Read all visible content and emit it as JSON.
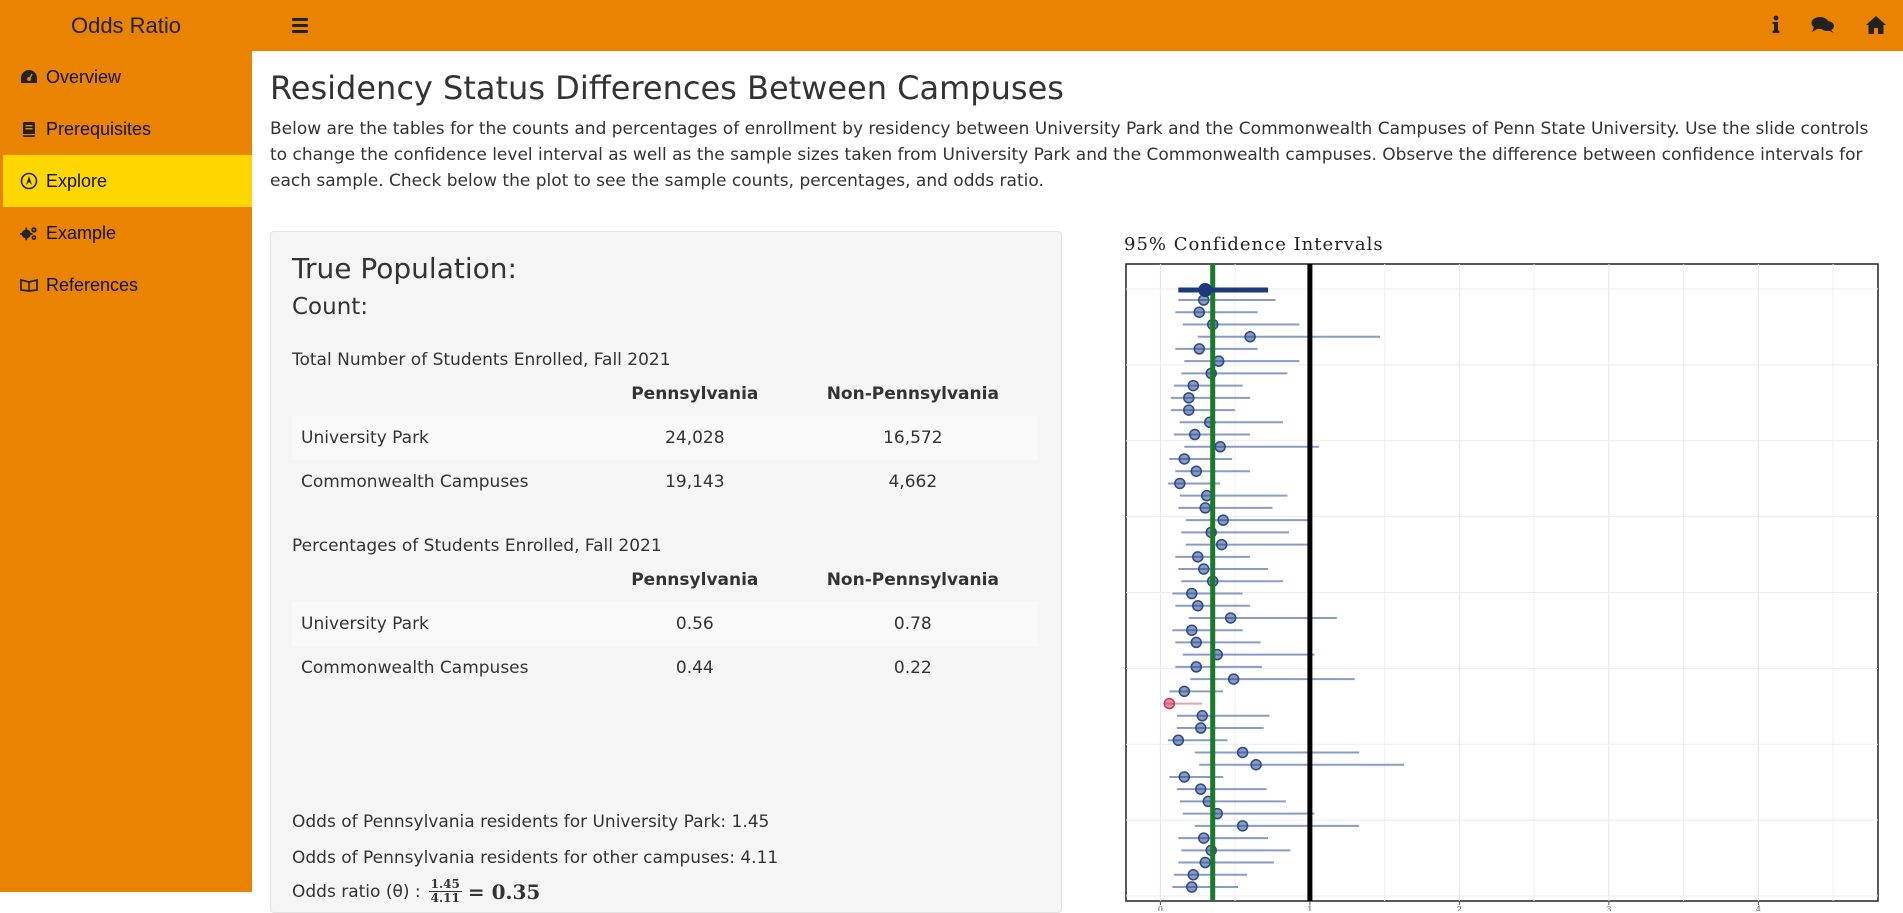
{
  "app": {
    "title": "Odds Ratio",
    "top_icons": [
      "info-icon",
      "comments-icon",
      "home-icon"
    ]
  },
  "sidebar": {
    "items": [
      {
        "label": "Overview",
        "icon": "dashboard-icon",
        "active": false
      },
      {
        "label": "Prerequisites",
        "icon": "book-icon",
        "active": false
      },
      {
        "label": "Explore",
        "icon": "wpexplorer-icon",
        "active": true
      },
      {
        "label": "Example",
        "icon": "gears-icon",
        "active": false
      },
      {
        "label": "References",
        "icon": "leanpub-icon",
        "active": false
      }
    ]
  },
  "main": {
    "title": "Residency Status Differences Between Campuses",
    "intro": "Below are the tables for the counts and percentages of enrollment by residency between University Park and the Commonwealth Campuses of Penn State University. Use the slide controls to change the confidence level interval as well as the sample sizes taken from University Park and the Commonwealth campuses. Observe the difference between confidence intervals for each sample. Check below the plot to see the sample counts, percentages, and odds ratio."
  },
  "panel": {
    "heading": "True Population:",
    "subheading": "Count:",
    "count_table": {
      "caption": "Total Number of Students Enrolled, Fall 2021",
      "headers": [
        "",
        "Pennsylvania",
        "Non-Pennsylvania"
      ],
      "rows": [
        [
          "University Park",
          "24,028",
          "16,572"
        ],
        [
          "Commonwealth Campuses",
          "19,143",
          "4,662"
        ]
      ]
    },
    "pct_table": {
      "caption": "Percentages of Students Enrolled, Fall 2021",
      "headers": [
        "",
        "Pennsylvania",
        "Non-Pennsylvania"
      ],
      "rows": [
        [
          "University Park",
          "0.56",
          "0.78"
        ],
        [
          "Commonwealth Campuses",
          "0.44",
          "0.22"
        ]
      ]
    },
    "odds_up": "Odds of Pennsylvania residents for University Park: 1.45",
    "odds_other": "Odds of Pennsylvania residents for other campuses: 4.11",
    "ratio_label": "Odds ratio (θ) :",
    "ratio_num": "1.45",
    "ratio_den": "4.11",
    "ratio_value": "= 0.35"
  },
  "chart_data": {
    "type": "scatter",
    "title": "95% Confidence Intervals",
    "xlabel": "",
    "ylabel": "",
    "xlim": [
      -0.23,
      4.8
    ],
    "xticks": [
      "0",
      "1",
      "2",
      "3",
      "4"
    ],
    "grid": true,
    "reference_lines": [
      {
        "name": "true odds ratio",
        "x": 0.35,
        "color": "#1a7a2a"
      },
      {
        "name": "null",
        "x": 1,
        "color": "#000000"
      }
    ],
    "colors": {
      "point": "#2a4a8a",
      "interval": "#8a9cc4",
      "miss": "#cc3355",
      "highlight": "#1a3a7a"
    },
    "highlight": {
      "estimate": 0.3,
      "lower": 0.12,
      "upper": 0.72
    },
    "intervals": [
      {
        "estimate": 0.29,
        "lower": 0.12,
        "upper": 0.77
      },
      {
        "estimate": 0.26,
        "lower": 0.1,
        "upper": 0.65
      },
      {
        "estimate": 0.35,
        "lower": 0.15,
        "upper": 0.93
      },
      {
        "estimate": 0.6,
        "lower": 0.25,
        "upper": 1.47
      },
      {
        "estimate": 0.26,
        "lower": 0.1,
        "upper": 0.65
      },
      {
        "estimate": 0.39,
        "lower": 0.16,
        "upper": 0.93
      },
      {
        "estimate": 0.34,
        "lower": 0.14,
        "upper": 0.85
      },
      {
        "estimate": 0.22,
        "lower": 0.09,
        "upper": 0.55
      },
      {
        "estimate": 0.19,
        "lower": 0.07,
        "upper": 0.6
      },
      {
        "estimate": 0.19,
        "lower": 0.07,
        "upper": 0.5
      },
      {
        "estimate": 0.33,
        "lower": 0.13,
        "upper": 0.82
      },
      {
        "estimate": 0.23,
        "lower": 0.09,
        "upper": 0.6
      },
      {
        "estimate": 0.4,
        "lower": 0.16,
        "upper": 1.06
      },
      {
        "estimate": 0.16,
        "lower": 0.06,
        "upper": 0.48
      },
      {
        "estimate": 0.24,
        "lower": 0.1,
        "upper": 0.6
      },
      {
        "estimate": 0.13,
        "lower": 0.05,
        "upper": 0.4
      },
      {
        "estimate": 0.31,
        "lower": 0.13,
        "upper": 0.85
      },
      {
        "estimate": 0.3,
        "lower": 0.12,
        "upper": 0.75
      },
      {
        "estimate": 0.42,
        "lower": 0.17,
        "upper": 1.0
      },
      {
        "estimate": 0.34,
        "lower": 0.14,
        "upper": 0.86
      },
      {
        "estimate": 0.41,
        "lower": 0.17,
        "upper": 1.0
      },
      {
        "estimate": 0.25,
        "lower": 0.1,
        "upper": 0.6
      },
      {
        "estimate": 0.29,
        "lower": 0.12,
        "upper": 0.72
      },
      {
        "estimate": 0.35,
        "lower": 0.14,
        "upper": 0.82
      },
      {
        "estimate": 0.21,
        "lower": 0.08,
        "upper": 0.55
      },
      {
        "estimate": 0.25,
        "lower": 0.1,
        "upper": 0.6
      },
      {
        "estimate": 0.47,
        "lower": 0.19,
        "upper": 1.18
      },
      {
        "estimate": 0.21,
        "lower": 0.08,
        "upper": 0.55
      },
      {
        "estimate": 0.24,
        "lower": 0.1,
        "upper": 0.67
      },
      {
        "estimate": 0.38,
        "lower": 0.15,
        "upper": 1.03
      },
      {
        "estimate": 0.24,
        "lower": 0.1,
        "upper": 0.68
      },
      {
        "estimate": 0.49,
        "lower": 0.2,
        "upper": 1.3
      },
      {
        "estimate": 0.16,
        "lower": 0.06,
        "upper": 0.42
      },
      {
        "estimate": 0.06,
        "lower": 0.02,
        "upper": 0.28,
        "miss": true
      },
      {
        "estimate": 0.28,
        "lower": 0.11,
        "upper": 0.73
      },
      {
        "estimate": 0.27,
        "lower": 0.11,
        "upper": 0.69
      },
      {
        "estimate": 0.12,
        "lower": 0.05,
        "upper": 0.45
      },
      {
        "estimate": 0.55,
        "lower": 0.23,
        "upper": 1.33
      },
      {
        "estimate": 0.64,
        "lower": 0.26,
        "upper": 1.63
      },
      {
        "estimate": 0.16,
        "lower": 0.06,
        "upper": 0.42
      },
      {
        "estimate": 0.27,
        "lower": 0.11,
        "upper": 0.71
      },
      {
        "estimate": 0.32,
        "lower": 0.13,
        "upper": 0.84
      },
      {
        "estimate": 0.38,
        "lower": 0.15,
        "upper": 1.03
      },
      {
        "estimate": 0.55,
        "lower": 0.23,
        "upper": 1.33
      },
      {
        "estimate": 0.29,
        "lower": 0.12,
        "upper": 0.72
      },
      {
        "estimate": 0.34,
        "lower": 0.14,
        "upper": 0.87
      },
      {
        "estimate": 0.3,
        "lower": 0.12,
        "upper": 0.76
      },
      {
        "estimate": 0.22,
        "lower": 0.09,
        "upper": 0.58
      },
      {
        "estimate": 0.21,
        "lower": 0.08,
        "upper": 0.52
      }
    ]
  }
}
